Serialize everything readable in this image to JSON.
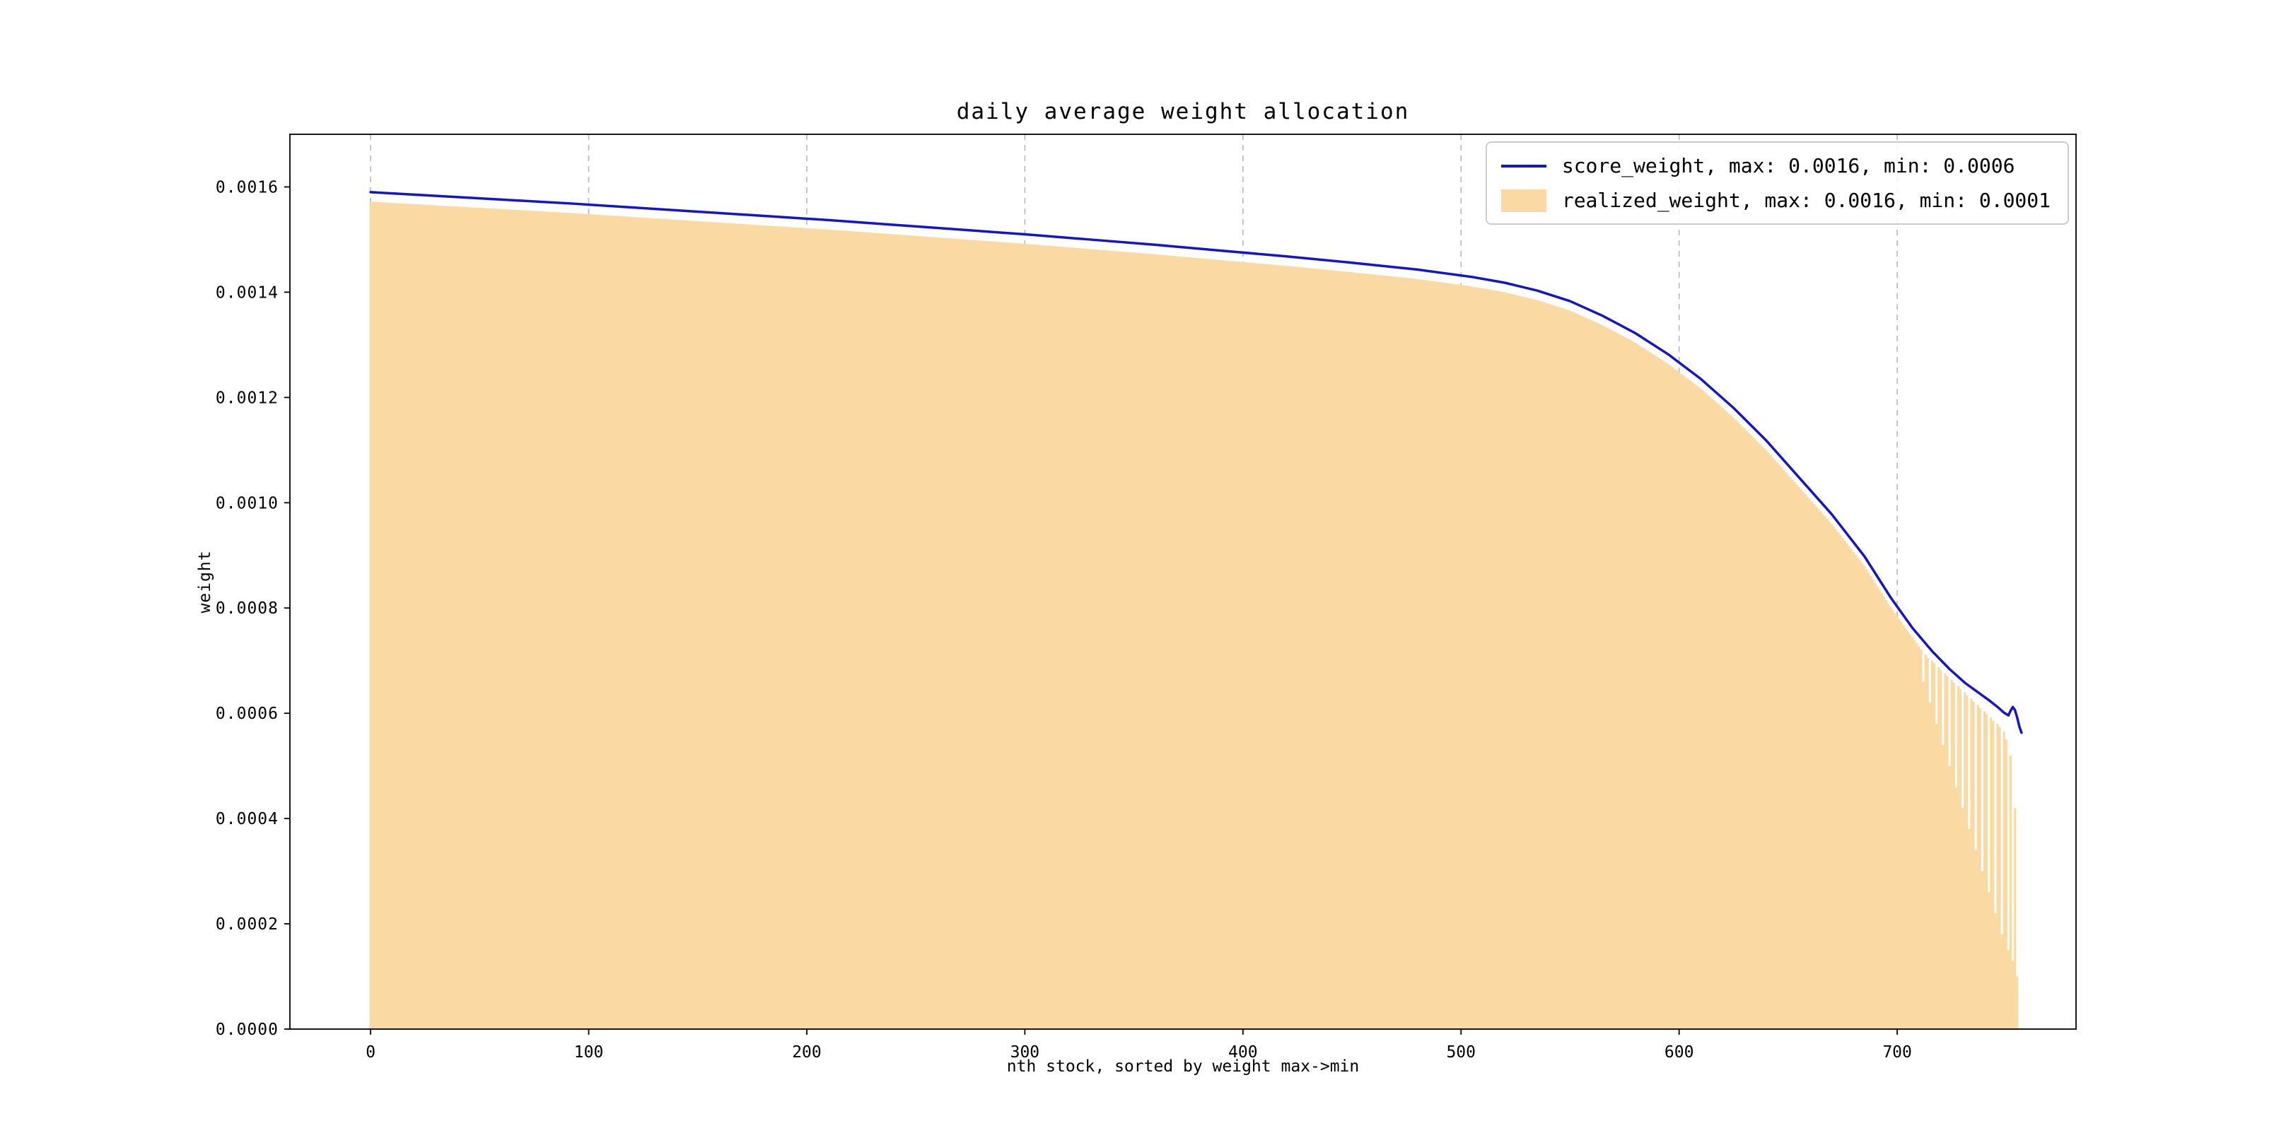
{
  "figure": {
    "background": "#ffffff"
  },
  "chart_data": {
    "type": "line+bar-area",
    "title": "daily average weight allocation",
    "xlabel": "nth stock, sorted by weight max->min",
    "ylabel": "weight",
    "xlim": [
      -37,
      782
    ],
    "ylim": [
      0,
      0.0017
    ],
    "xticks": [
      0,
      100,
      200,
      300,
      400,
      500,
      600,
      700
    ],
    "ytick_values": [
      0.0,
      0.0002,
      0.0004,
      0.0006,
      0.0008,
      0.001,
      0.0012,
      0.0014,
      0.0016
    ],
    "ytick_labels": [
      "0.0000",
      "0.0002",
      "0.0004",
      "0.0006",
      "0.0008",
      "0.0010",
      "0.0012",
      "0.0014",
      "0.0016"
    ],
    "grid": {
      "vertical_dashed": true,
      "color": "#b8b8b8"
    },
    "axes_color": "#000000",
    "legend_position": "upper-right",
    "series": [
      {
        "name": "score_weight",
        "legend_label": "score_weight, max: 0.0016, min: 0.0006",
        "type": "line",
        "color": "#1414cc",
        "max": 0.0016,
        "min": 0.0006,
        "points": [
          [
            0,
            0.00159
          ],
          [
            30,
            0.001583
          ],
          [
            60,
            0.001576
          ],
          [
            90,
            0.001569
          ],
          [
            120,
            0.001561
          ],
          [
            150,
            0.001553
          ],
          [
            180,
            0.001545
          ],
          [
            210,
            0.001537
          ],
          [
            240,
            0.001528
          ],
          [
            270,
            0.001519
          ],
          [
            300,
            0.00151
          ],
          [
            330,
            0.0015
          ],
          [
            360,
            0.00149
          ],
          [
            390,
            0.001479
          ],
          [
            420,
            0.001468
          ],
          [
            450,
            0.001456
          ],
          [
            480,
            0.001443
          ],
          [
            505,
            0.001429
          ],
          [
            520,
            0.001418
          ],
          [
            535,
            0.001403
          ],
          [
            550,
            0.001383
          ],
          [
            565,
            0.001355
          ],
          [
            580,
            0.001322
          ],
          [
            595,
            0.001282
          ],
          [
            610,
            0.001235
          ],
          [
            625,
            0.00118
          ],
          [
            640,
            0.001118
          ],
          [
            655,
            0.001048
          ],
          [
            670,
            0.000978
          ],
          [
            685,
            0.000898
          ],
          [
            697,
            0.00082
          ],
          [
            707,
            0.000762
          ],
          [
            716,
            0.000718
          ],
          [
            724,
            0.000684
          ],
          [
            731,
            0.000658
          ],
          [
            737,
            0.00064
          ],
          [
            742,
            0.000625
          ],
          [
            746,
            0.000612
          ],
          [
            749,
            0.000601
          ],
          [
            751,
            0.000596
          ],
          [
            752,
            0.000605
          ],
          [
            753,
            0.000612
          ],
          [
            754,
            0.000606
          ],
          [
            755,
            0.000592
          ],
          [
            756,
            0.000575
          ],
          [
            757,
            0.000563
          ]
        ]
      },
      {
        "name": "realized_weight",
        "legend_label": "realized_weight, max: 0.0016, min: 0.0001",
        "type": "bar-area",
        "color": "#fbd9a2",
        "max": 0.0016,
        "min": 0.0001,
        "points": [
          [
            0,
            0.001572
          ],
          [
            30,
            0.001565
          ],
          [
            60,
            0.001558
          ],
          [
            90,
            0.001551
          ],
          [
            120,
            0.001543
          ],
          [
            150,
            0.001535
          ],
          [
            180,
            0.001527
          ],
          [
            210,
            0.001519
          ],
          [
            240,
            0.00151
          ],
          [
            270,
            0.001501
          ],
          [
            300,
            0.001492
          ],
          [
            330,
            0.001482
          ],
          [
            360,
            0.001472
          ],
          [
            390,
            0.001461
          ],
          [
            420,
            0.00145
          ],
          [
            450,
            0.001438
          ],
          [
            480,
            0.001425
          ],
          [
            505,
            0.001411
          ],
          [
            520,
            0.0014
          ],
          [
            535,
            0.001385
          ],
          [
            550,
            0.001365
          ],
          [
            565,
            0.001337
          ],
          [
            580,
            0.001304
          ],
          [
            595,
            0.001264
          ],
          [
            610,
            0.001217
          ],
          [
            625,
            0.001162
          ],
          [
            640,
            0.0011
          ],
          [
            655,
            0.00103
          ],
          [
            670,
            0.00096
          ],
          [
            685,
            0.00088
          ],
          [
            697,
            0.000802
          ],
          [
            707,
            0.000744
          ],
          [
            711,
            0.000722
          ],
          [
            712,
            0.00066
          ],
          [
            713,
            0.000712
          ],
          [
            714,
            0.000705
          ],
          [
            715,
            0.00062
          ],
          [
            716,
            0.0007
          ],
          [
            717,
            0.000695
          ],
          [
            718,
            0.00058
          ],
          [
            719,
            0.000688
          ],
          [
            720,
            0.000682
          ],
          [
            721,
            0.00054
          ],
          [
            722,
            0.000676
          ],
          [
            723,
            0.00067
          ],
          [
            724,
            0.0005
          ],
          [
            725,
            0.000664
          ],
          [
            726,
            0.000658
          ],
          [
            727,
            0.00046
          ],
          [
            728,
            0.000652
          ],
          [
            729,
            0.000646
          ],
          [
            730,
            0.00042
          ],
          [
            731,
            0.00064
          ],
          [
            732,
            0.000634
          ],
          [
            733,
            0.00038
          ],
          [
            734,
            0.000628
          ],
          [
            735,
            0.000622
          ],
          [
            736,
            0.00034
          ],
          [
            737,
            0.000616
          ],
          [
            738,
            0.00061
          ],
          [
            739,
            0.0003
          ],
          [
            740,
            0.000604
          ],
          [
            741,
            0.000598
          ],
          [
            742,
            0.00026
          ],
          [
            743,
            0.000592
          ],
          [
            744,
            0.000586
          ],
          [
            745,
            0.00022
          ],
          [
            746,
            0.00058
          ],
          [
            747,
            0.000574
          ],
          [
            748,
            0.00018
          ],
          [
            749,
            0.000566
          ],
          [
            750,
            0.00055
          ],
          [
            751,
            0.00015
          ],
          [
            752,
            0.00052
          ],
          [
            753,
            0.00013
          ],
          [
            754,
            0.00042
          ],
          [
            755,
            0.0001
          ]
        ]
      }
    ]
  }
}
